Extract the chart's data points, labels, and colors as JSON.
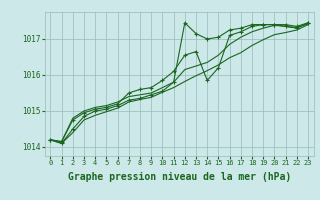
{
  "xlabel": "Graphe pression niveau de la mer (hPa)",
  "bg_color": "#cce8e8",
  "grid_color": "#99bbbb",
  "line_color": "#1a6620",
  "text_color": "#1a6620",
  "ylim": [
    1013.75,
    1017.75
  ],
  "xlim": [
    -0.5,
    23.5
  ],
  "yticks": [
    1014,
    1015,
    1016,
    1017
  ],
  "xticks": [
    0,
    1,
    2,
    3,
    4,
    5,
    6,
    7,
    8,
    9,
    10,
    11,
    12,
    13,
    14,
    15,
    16,
    17,
    18,
    19,
    20,
    21,
    22,
    23
  ],
  "series": [
    {
      "y": [
        1014.2,
        1014.1,
        1014.5,
        1014.85,
        1015.0,
        1015.05,
        1015.15,
        1015.3,
        1015.35,
        1015.45,
        1015.55,
        1015.8,
        1017.45,
        1017.15,
        1017.0,
        1017.05,
        1017.25,
        1017.3,
        1017.4,
        1017.4,
        1017.4,
        1017.35,
        1017.3,
        1017.45
      ],
      "marker": true,
      "marker_style": "+",
      "linewidth": 0.8
    },
    {
      "y": [
        1014.2,
        1014.15,
        1014.75,
        1014.95,
        1015.05,
        1015.1,
        1015.2,
        1015.5,
        1015.6,
        1015.65,
        1015.85,
        1016.1,
        1016.55,
        1016.65,
        1015.85,
        1016.2,
        1017.1,
        1017.2,
        1017.35,
        1017.4,
        1017.4,
        1017.4,
        1017.35,
        1017.45
      ],
      "marker": true,
      "marker_style": "+",
      "linewidth": 0.8
    },
    {
      "y": [
        1014.2,
        1014.15,
        1014.8,
        1015.0,
        1015.1,
        1015.15,
        1015.25,
        1015.4,
        1015.45,
        1015.5,
        1015.65,
        1015.8,
        1016.15,
        1016.25,
        1016.35,
        1016.55,
        1016.85,
        1017.05,
        1017.2,
        1017.3,
        1017.38,
        1017.35,
        1017.32,
        1017.42
      ],
      "marker": false,
      "marker_style": null,
      "linewidth": 0.8
    },
    {
      "y": [
        1014.2,
        1014.1,
        1014.4,
        1014.75,
        1014.88,
        1014.98,
        1015.08,
        1015.25,
        1015.32,
        1015.38,
        1015.52,
        1015.65,
        1015.82,
        1015.98,
        1016.12,
        1016.28,
        1016.48,
        1016.62,
        1016.82,
        1016.98,
        1017.12,
        1017.18,
        1017.25,
        1017.4
      ],
      "marker": false,
      "marker_style": null,
      "linewidth": 0.8
    }
  ],
  "markersize": 3.5,
  "xlabel_fontsize": 7,
  "tick_fontsize": 5,
  "ytick_fontsize": 5.5
}
